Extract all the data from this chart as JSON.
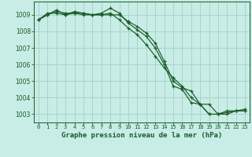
{
  "title": "Graphe pression niveau de la mer (hPa)",
  "bg_color": "#c8ece6",
  "plot_bg_color": "#c8ece6",
  "grid_color": "#a8d4cc",
  "line_color": "#1a5c28",
  "x_ticks": [
    0,
    1,
    2,
    3,
    4,
    5,
    6,
    7,
    8,
    9,
    10,
    11,
    12,
    13,
    14,
    15,
    16,
    17,
    18,
    19,
    20,
    21,
    22,
    23
  ],
  "ylim": [
    1002.5,
    1009.8
  ],
  "yticks": [
    1003,
    1004,
    1005,
    1006,
    1007,
    1008,
    1009
  ],
  "series": [
    [
      1008.7,
      1009.0,
      1009.2,
      1009.1,
      1009.1,
      1009.1,
      1009.0,
      1009.1,
      1009.4,
      1009.1,
      1008.5,
      1008.1,
      1007.7,
      1007.0,
      1006.0,
      1004.7,
      1004.5,
      1003.7,
      1003.6,
      1003.0,
      1003.0,
      1003.2,
      1003.2,
      1003.2
    ],
    [
      1008.7,
      1009.0,
      1009.3,
      1009.0,
      1009.2,
      1009.1,
      1009.0,
      1009.0,
      1009.0,
      1009.0,
      1008.6,
      1008.3,
      1007.9,
      1007.3,
      1006.2,
      1005.0,
      1004.6,
      1004.4,
      1003.6,
      1003.6,
      1003.0,
      1003.1,
      1003.2,
      1003.2
    ],
    [
      1008.7,
      1009.1,
      1009.1,
      1009.0,
      1009.1,
      1009.0,
      1009.0,
      1009.0,
      1009.1,
      1008.7,
      1008.2,
      1007.8,
      1007.2,
      1006.5,
      1005.8,
      1005.2,
      1004.7,
      1004.0,
      1003.6,
      1003.0,
      1003.0,
      1003.0,
      1003.2,
      1003.3
    ]
  ]
}
